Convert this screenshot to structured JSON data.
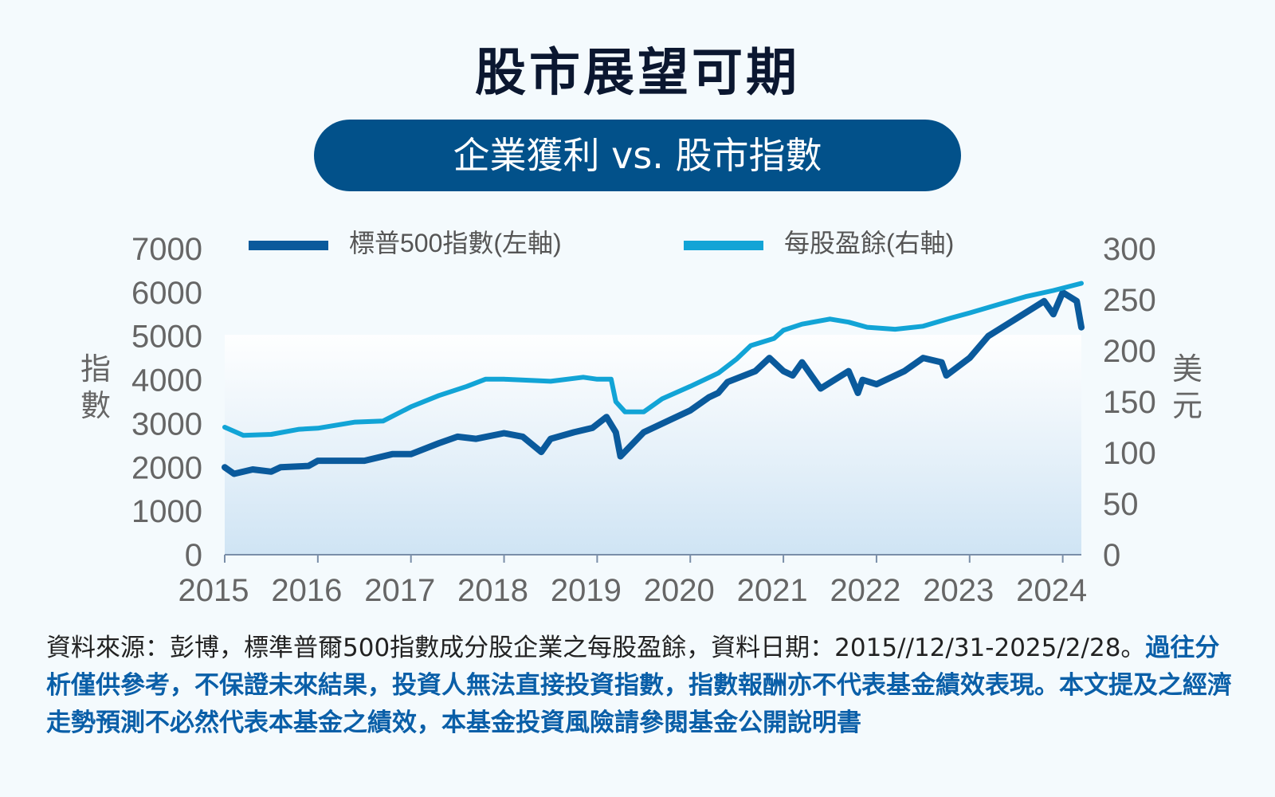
{
  "title": "股市展望可期",
  "subtitle": "企業獲利 vs. 股市指數",
  "left_axis_unit": "指\n數",
  "right_axis_unit": "美\n元",
  "colors": {
    "sp500": "#0a5a9c",
    "eps": "#12a4d6",
    "pill": "#02518a"
  },
  "footnote": {
    "source": "資料來源：彭博，標準普爾500指數成分股企業之每股盈餘，資料日期：2015//12/31-2025/2/28。",
    "disclaimer": "過往分析僅供參考，不保證未來結果，投資人無法直接投資指數，指數報酬亦不代表基金績效表現。本文提及之經濟走勢預測不必然代表本基金之績效，本基金投資風險請參閱基金公開說明書"
  },
  "chart_data": {
    "type": "line",
    "title": "企業獲利 vs. 股市指數",
    "legend_position": "top",
    "x_ticks": [
      "2015",
      "2016",
      "2017",
      "2018",
      "2019",
      "2020",
      "2021",
      "2022",
      "2023",
      "2024"
    ],
    "xlim": [
      2015.0,
      2024.2
    ],
    "left_axis": {
      "label": "指數",
      "ylim": [
        0,
        7000
      ],
      "ticks": [
        "0",
        "1000",
        "2000",
        "3000",
        "4000",
        "5000",
        "6000",
        "7000"
      ]
    },
    "right_axis": {
      "label": "美元",
      "ylim": [
        0,
        300
      ],
      "ticks": [
        "0",
        "50",
        "100",
        "150",
        "200",
        "250",
        "300"
      ]
    },
    "series": [
      {
        "name": "標普500指數(左軸)",
        "axis": "left",
        "points": [
          [
            2015.0,
            2000
          ],
          [
            2015.1,
            1850
          ],
          [
            2015.3,
            1950
          ],
          [
            2015.5,
            1900
          ],
          [
            2015.6,
            2000
          ],
          [
            2015.9,
            2030
          ],
          [
            2016.0,
            2150
          ],
          [
            2016.5,
            2150
          ],
          [
            2016.8,
            2300
          ],
          [
            2017.0,
            2300
          ],
          [
            2017.3,
            2550
          ],
          [
            2017.5,
            2700
          ],
          [
            2017.7,
            2650
          ],
          [
            2018.0,
            2780
          ],
          [
            2018.2,
            2700
          ],
          [
            2018.4,
            2350
          ],
          [
            2018.5,
            2650
          ],
          [
            2018.75,
            2800
          ],
          [
            2018.95,
            2900
          ],
          [
            2019.1,
            3150
          ],
          [
            2019.2,
            2800
          ],
          [
            2019.25,
            2250
          ],
          [
            2019.5,
            2800
          ],
          [
            2019.8,
            3100
          ],
          [
            2020.0,
            3300
          ],
          [
            2020.2,
            3600
          ],
          [
            2020.3,
            3700
          ],
          [
            2020.4,
            3950
          ],
          [
            2020.7,
            4200
          ],
          [
            2020.85,
            4500
          ],
          [
            2021.0,
            4200
          ],
          [
            2021.1,
            4100
          ],
          [
            2021.2,
            4400
          ],
          [
            2021.4,
            3800
          ],
          [
            2021.7,
            4200
          ],
          [
            2021.8,
            3700
          ],
          [
            2021.85,
            4000
          ],
          [
            2022.0,
            3900
          ],
          [
            2022.3,
            4200
          ],
          [
            2022.5,
            4500
          ],
          [
            2022.7,
            4400
          ],
          [
            2022.75,
            4100
          ],
          [
            2023.0,
            4500
          ],
          [
            2023.2,
            5000
          ],
          [
            2023.5,
            5400
          ],
          [
            2023.8,
            5800
          ],
          [
            2023.9,
            5500
          ],
          [
            2024.0,
            6000
          ],
          [
            2024.15,
            5800
          ],
          [
            2024.2,
            5200
          ]
        ]
      },
      {
        "name": "每股盈餘(右軸)",
        "axis": "right",
        "points": [
          [
            2015.0,
            125
          ],
          [
            2015.2,
            117
          ],
          [
            2015.5,
            118
          ],
          [
            2015.8,
            123
          ],
          [
            2016.0,
            124
          ],
          [
            2016.4,
            130
          ],
          [
            2016.7,
            131
          ],
          [
            2017.0,
            145
          ],
          [
            2017.3,
            156
          ],
          [
            2017.6,
            165
          ],
          [
            2017.8,
            172
          ],
          [
            2018.0,
            172
          ],
          [
            2018.5,
            170
          ],
          [
            2018.85,
            174
          ],
          [
            2019.0,
            172
          ],
          [
            2019.15,
            172
          ],
          [
            2019.2,
            150
          ],
          [
            2019.3,
            140
          ],
          [
            2019.5,
            140
          ],
          [
            2019.7,
            153
          ],
          [
            2020.0,
            165
          ],
          [
            2020.3,
            178
          ],
          [
            2020.5,
            192
          ],
          [
            2020.65,
            205
          ],
          [
            2020.9,
            212
          ],
          [
            2021.0,
            220
          ],
          [
            2021.2,
            226
          ],
          [
            2021.5,
            231
          ],
          [
            2021.7,
            228
          ],
          [
            2021.9,
            223
          ],
          [
            2022.2,
            221
          ],
          [
            2022.5,
            224
          ],
          [
            2022.8,
            232
          ],
          [
            2023.0,
            237
          ],
          [
            2023.3,
            245
          ],
          [
            2023.6,
            253
          ],
          [
            2023.9,
            259
          ],
          [
            2024.2,
            266
          ]
        ]
      }
    ]
  }
}
